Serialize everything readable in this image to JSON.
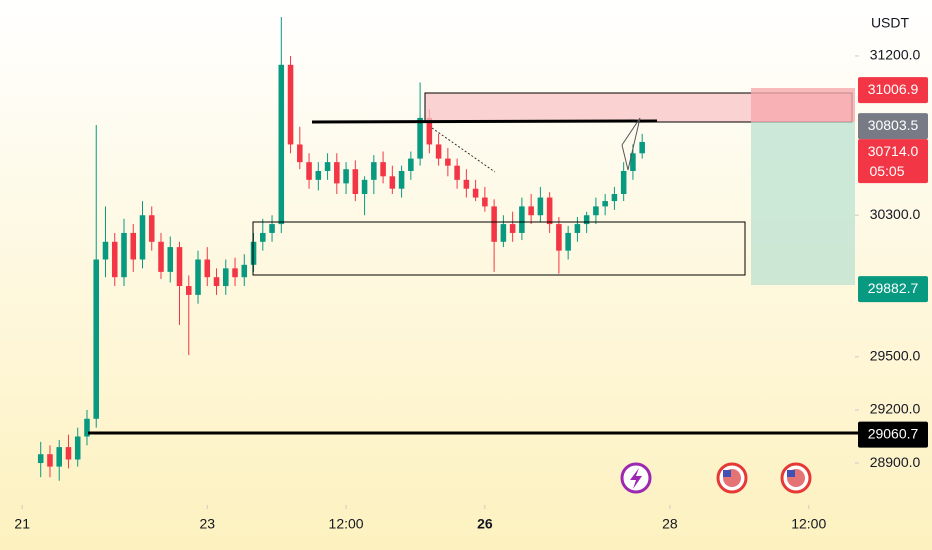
{
  "chart_data": {
    "type": "candlestick",
    "currency": "USDT",
    "x": [
      21.2,
      21.3,
      21.4,
      21.5,
      21.6,
      21.7,
      21.8,
      21.9,
      22.0,
      22.1,
      22.2,
      22.3,
      22.4,
      22.5,
      22.6,
      22.7,
      22.8,
      22.9,
      23.0,
      23.1,
      23.2,
      23.3,
      23.4,
      23.5,
      23.6,
      23.7,
      23.8,
      23.9,
      24.0,
      24.1,
      24.2,
      24.3,
      24.4,
      24.5,
      24.6,
      24.7,
      24.8,
      24.9,
      25.0,
      25.1,
      25.2,
      25.3,
      25.4,
      25.5,
      25.6,
      25.7,
      25.8,
      25.9,
      26.0,
      26.1,
      26.2,
      26.3,
      26.4,
      26.5,
      26.6,
      26.7,
      26.8,
      26.9,
      27.0,
      27.1,
      27.2,
      27.3,
      27.4,
      27.5,
      27.6,
      27.7
    ],
    "open": [
      28900,
      28950,
      28880,
      28990,
      28920,
      29050,
      29150,
      30050,
      30150,
      29950,
      30200,
      30050,
      30300,
      30150,
      29980,
      30120,
      29900,
      29850,
      30050,
      29950,
      29900,
      30000,
      29950,
      30020,
      30150,
      30200,
      30250,
      31150,
      30700,
      30600,
      30500,
      30550,
      30600,
      30480,
      30560,
      30420,
      30500,
      30600,
      30520,
      30450,
      30550,
      30620,
      30850,
      30700,
      30620,
      30580,
      30500,
      30450,
      30400,
      30350,
      30150,
      30250,
      30200,
      30350,
      30300,
      30400,
      30250,
      30100,
      30200,
      30250,
      30300,
      30350,
      30380,
      30420,
      30550,
      30650
    ],
    "high": [
      29020,
      29000,
      29030,
      29060,
      29100,
      29200,
      30810,
      30350,
      30200,
      30280,
      30250,
      30380,
      30350,
      30200,
      30180,
      30150,
      29960,
      30100,
      30120,
      30000,
      30050,
      30060,
      30080,
      30200,
      30280,
      30300,
      31420,
      31200,
      30800,
      30650,
      30600,
      30650,
      30650,
      30600,
      30610,
      30520,
      30640,
      30660,
      30580,
      30580,
      30660,
      31050,
      30900,
      30760,
      30680,
      30620,
      30560,
      30500,
      30460,
      30390,
      30300,
      30320,
      30400,
      30420,
      30460,
      30430,
      30290,
      30240,
      30290,
      30320,
      30400,
      30420,
      30460,
      30600,
      30700,
      30760
    ],
    "low": [
      28820,
      28820,
      28800,
      28870,
      28880,
      29000,
      29100,
      29950,
      29900,
      29900,
      29980,
      30000,
      30100,
      29940,
      29920,
      29680,
      29510,
      29800,
      29900,
      29850,
      29850,
      29900,
      29900,
      29980,
      30100,
      30150,
      30200,
      30650,
      30560,
      30450,
      30440,
      30500,
      30420,
      30420,
      30380,
      30300,
      30420,
      30480,
      30420,
      30400,
      30500,
      30580,
      30650,
      30580,
      30520,
      30450,
      30400,
      30380,
      30320,
      29980,
      30120,
      30150,
      30160,
      30250,
      30260,
      30200,
      29970,
      30050,
      30150,
      30200,
      30250,
      30300,
      30330,
      30380,
      30500,
      30620
    ],
    "close": [
      28950,
      28880,
      28990,
      28920,
      29050,
      29150,
      30050,
      30150,
      29950,
      30200,
      30050,
      30300,
      30150,
      29980,
      30120,
      29900,
      29850,
      30050,
      29950,
      29900,
      30000,
      29950,
      30020,
      30150,
      30200,
      30250,
      31150,
      30700,
      30600,
      30500,
      30550,
      30600,
      30480,
      30560,
      30420,
      30500,
      30600,
      30520,
      30450,
      30550,
      30620,
      30850,
      30700,
      30620,
      30580,
      30500,
      30450,
      30400,
      30350,
      30150,
      30250,
      30200,
      30350,
      30300,
      30400,
      30250,
      30100,
      30200,
      30250,
      30300,
      30350,
      30380,
      30420,
      30550,
      30650,
      30714
    ],
    "up_color": "#089981",
    "down_color": "#f23645",
    "xlim": [
      20.76,
      30.0
    ],
    "xticks": [
      21,
      23,
      {
        "value": 24.5,
        "label": "12:00"
      },
      26,
      28,
      {
        "value": 29.5,
        "label": "12:00"
      }
    ],
    "ylim": [
      28663,
      31516
    ],
    "yticks": [
      {
        "value": 28900,
        "label": "28900.0"
      },
      {
        "value": 29200,
        "label": "29200.0"
      },
      {
        "value": 29500,
        "label": "29500.0"
      },
      {
        "value": 30300,
        "label": "30300.0"
      },
      {
        "value": 31200,
        "label": "31200.0"
      }
    ],
    "price_labels": [
      {
        "value": 31006.9,
        "label": "31006.9",
        "color": "#f23645"
      },
      {
        "value": 30803.5,
        "label": "30803.5",
        "color": "#787b86"
      },
      {
        "value": 30714.0,
        "label": "30714.0",
        "sublabel": "05:05",
        "color": "#f23645"
      },
      {
        "value": 29882.7,
        "label": "29882.7",
        "color": "#089981"
      },
      {
        "value": 29060.7,
        "label": "29060.7",
        "color": "#000000"
      }
    ]
  }
}
